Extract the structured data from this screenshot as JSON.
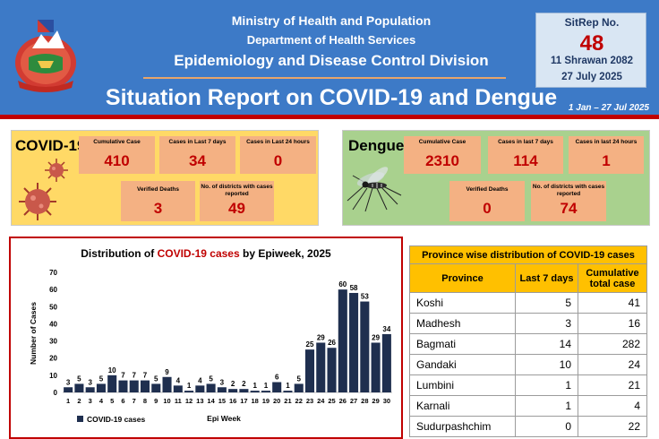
{
  "header": {
    "ministry": "Ministry of Health and Population",
    "department": "Department of Health Services",
    "division": "Epidemiology and Disease Control Division",
    "report_title": "Situation Report on COVID-19 and Dengue",
    "date_range": "1 Jan – 27 Jul 2025"
  },
  "sitrep": {
    "label": "SitRep No.",
    "number": "48",
    "nepali_date": "11 Shrawan 2082",
    "date": "27 July 2025"
  },
  "covid": {
    "title": "COVID-19",
    "cumulative": {
      "label": "Cumulative Case",
      "value": "410"
    },
    "last7": {
      "label": "Cases in Last 7 days",
      "value": "34"
    },
    "last24": {
      "label": "Cases in Last 24 hours",
      "value": "0"
    },
    "deaths": {
      "label": "Verified Deaths",
      "value": "3"
    },
    "districts": {
      "label": "No. of districts with cases reported",
      "value": "49"
    }
  },
  "dengue": {
    "title": "Dengue",
    "cumulative": {
      "label": "Cumulative Case",
      "value": "2310"
    },
    "last7": {
      "label": "Cases in last 7 days",
      "value": "114"
    },
    "last24": {
      "label": "Cases in last 24 hours",
      "value": "1"
    },
    "deaths": {
      "label": "Verified Deaths",
      "value": "0"
    },
    "districts": {
      "label": "No. of districts with cases reported",
      "value": "74"
    }
  },
  "colors": {
    "header_blue": "#3d7ac7",
    "accent_red": "#c00000",
    "covid_yellow": "#ffd966",
    "dengue_green": "#a9d18e",
    "card_orange": "#f4b183",
    "table_header": "#ffc000",
    "bar_navy": "#1f2f4f"
  },
  "icons": [
    "nepal-emblem-icon",
    "virus-icon",
    "mosquito-icon"
  ],
  "chart": {
    "title_prefix": "Distribution of ",
    "title_highlight": "COVID-19 cases",
    "title_suffix": " by Epiweek, 2025"
  },
  "chart_data": {
    "type": "bar",
    "title": "Distribution of COVID-19 cases by Epiweek, 2025",
    "xlabel": "Epi Week",
    "ylabel": "Number of Cases",
    "ylim": [
      0,
      70
    ],
    "yticks": [
      0,
      10,
      20,
      30,
      40,
      50,
      60,
      70
    ],
    "categories": [
      "1",
      "2",
      "3",
      "4",
      "5",
      "6",
      "7",
      "8",
      "9",
      "10",
      "11",
      "12",
      "13",
      "14",
      "15",
      "16",
      "17",
      "18",
      "19",
      "20",
      "21",
      "22",
      "23",
      "24",
      "25",
      "26",
      "27",
      "28",
      "29",
      "30"
    ],
    "series": [
      {
        "name": "COVID-19 cases",
        "values": [
          3,
          5,
          3,
          5,
          10,
          7,
          7,
          7,
          5,
          9,
          4,
          1,
          4,
          5,
          3,
          2,
          2,
          1,
          1,
          6,
          1,
          5,
          25,
          29,
          26,
          60,
          58,
          53,
          29,
          34
        ]
      }
    ],
    "grid": false,
    "legend": "bottom-left"
  },
  "table": {
    "caption": "Province wise distribution of COVID-19 cases",
    "headers": [
      "Province",
      "Last 7 days",
      "Cumulative total case"
    ],
    "rows": [
      [
        "Koshi",
        "5",
        "41"
      ],
      [
        "Madhesh",
        "3",
        "16"
      ],
      [
        "Bagmati",
        "14",
        "282"
      ],
      [
        "Gandaki",
        "10",
        "24"
      ],
      [
        "Lumbini",
        "1",
        "21"
      ],
      [
        "Karnali",
        "1",
        "4"
      ],
      [
        "Sudurpashchim",
        "0",
        "22"
      ]
    ]
  }
}
